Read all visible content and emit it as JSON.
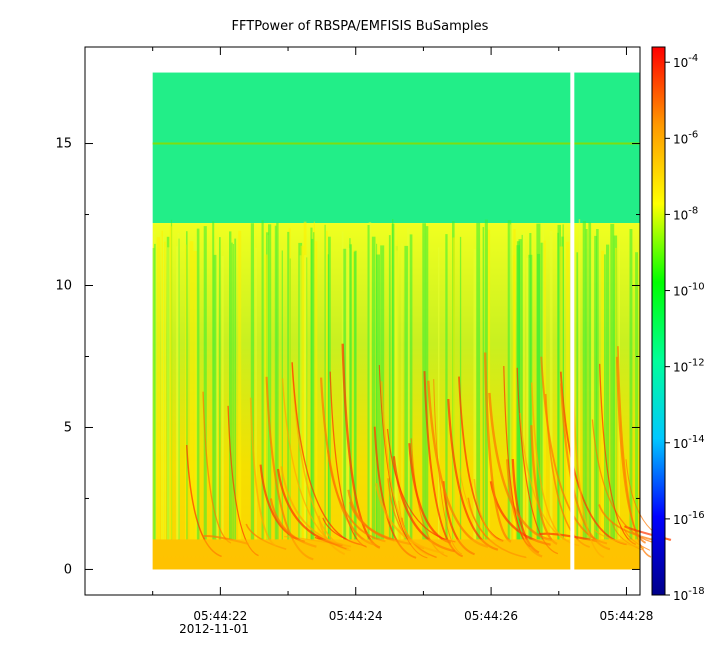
{
  "chart_data": {
    "type": "heatmap",
    "title": "FFTPower of RBSPA/EMFISIS  BuSamples",
    "xlabel": "",
    "ylabel": "",
    "x_tick_labels": [
      "05:44:22",
      "05:44:24",
      "05:44:26",
      "05:44:28"
    ],
    "x_tick_values_s": [
      22,
      24,
      26,
      28
    ],
    "x_date_label": "2012-11-01",
    "xlim_s": [
      20.0,
      28.2
    ],
    "data_x_range_s": [
      21.0,
      28.2
    ],
    "gap_x_s": 27.2,
    "y_tick_labels": [
      "0",
      "5",
      "10",
      "15"
    ],
    "y_tick_values": [
      0,
      5,
      10,
      15
    ],
    "ylim": [
      -0.9,
      18.4
    ],
    "data_y_range": [
      0,
      17.5
    ],
    "noise_floor_top": 12.2,
    "line_freq": 15.0,
    "colorbar": {
      "scale": "log",
      "range_exp": [
        -18,
        -3.6
      ],
      "tick_exponents": [
        -4,
        -6,
        -8,
        -10,
        -12,
        -14,
        -16,
        -18
      ],
      "tick_labels": [
        "10",
        "10",
        "10",
        "10",
        "10",
        "10",
        "10",
        "10"
      ],
      "tick_superscripts": [
        "-4",
        "-6",
        "-8",
        "-10",
        "-12",
        "-14",
        "-16",
        "-18"
      ],
      "colors": [
        "#00008a",
        "#0000ff",
        "#00c8ff",
        "#00ff99",
        "#00ff00",
        "#ffff00",
        "#ff9900",
        "#ff0000"
      ]
    }
  }
}
